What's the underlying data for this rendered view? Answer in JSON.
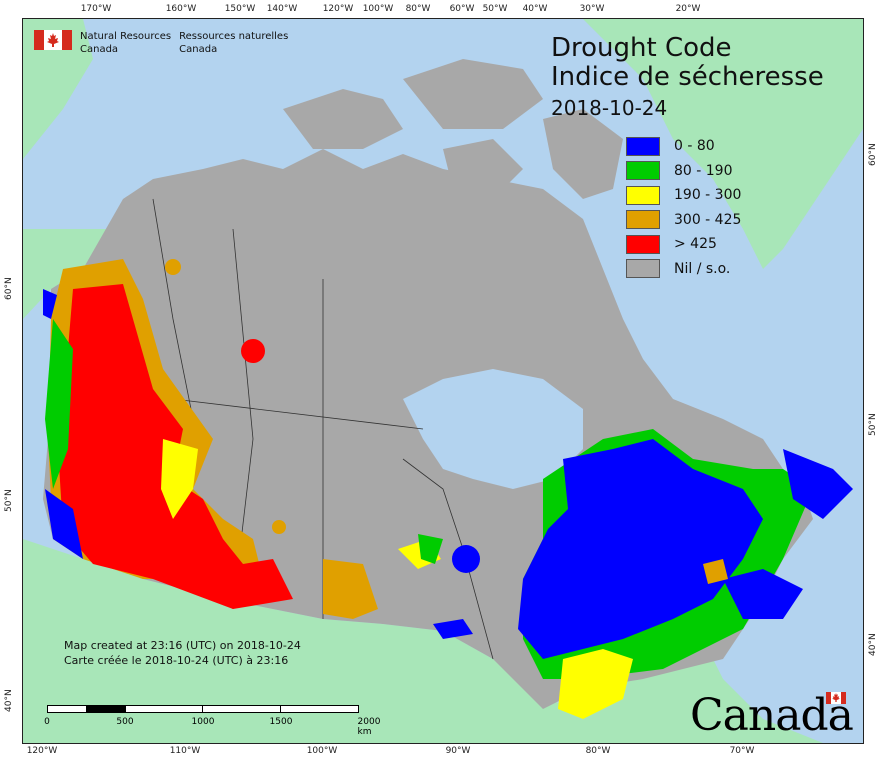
{
  "agency": {
    "name_en_line1": "Natural Resources",
    "name_en_line2": "Canada",
    "name_fr_line1": "Ressources naturelles",
    "name_fr_line2": "Canada"
  },
  "map": {
    "title_en": "Drought Code",
    "title_fr": "Indice de sécheresse",
    "date": "2018-10-24",
    "legend": [
      {
        "label": "0 - 80",
        "color": "#0000ff"
      },
      {
        "label": "80 - 190",
        "color": "#00cc00"
      },
      {
        "label": "190 - 300",
        "color": "#ffff00"
      },
      {
        "label": "300 - 425",
        "color": "#e0a000"
      },
      {
        "label": "> 425",
        "color": "#ff0000"
      },
      {
        "label": "Nil / s.o.",
        "color": "#a8a8a8"
      }
    ],
    "credit_en": "Map created at 23:16 (UTC) on 2018-10-24",
    "credit_fr": "Carte créée le 2018-10-24 (UTC) à 23:16",
    "scale_labels": [
      "0",
      "500",
      "1000",
      "1500",
      "2000 km"
    ],
    "wordmark": "Canada",
    "top_ticks": [
      "170°W",
      "160°W",
      "150°W",
      "140°W",
      "120°W",
      "100°W",
      "80°W",
      "60°W",
      "50°W",
      "40°W",
      "30°W",
      "20°W"
    ],
    "bottom_ticks": [
      "120°W",
      "110°W",
      "100°W",
      "90°W",
      "80°W",
      "70°W"
    ],
    "left_ticks": [
      "60°N",
      "50°N",
      "40°N"
    ],
    "right_ticks": [
      "60°N",
      "50°N",
      "40°N"
    ]
  },
  "colors": {
    "water": "#b3d3ef",
    "foreign_land": "#a8e6b8",
    "canada_nil": "#a8a8a8"
  }
}
